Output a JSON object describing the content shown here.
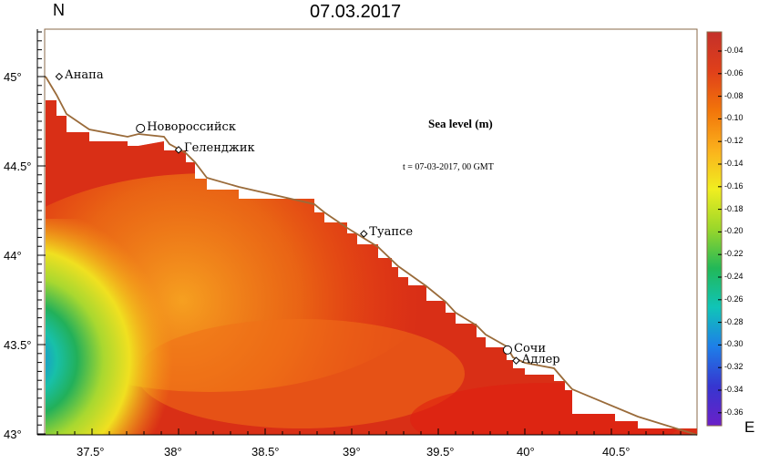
{
  "map": {
    "date": "07.03.2017",
    "north_label": "N",
    "east_label": "E",
    "panel_title": "Sea level (m)",
    "time_label": "t = 07-03-2017,  00 GMT",
    "lat_ticks": [
      "45°",
      "44.5°",
      "44°",
      "43.5°",
      "43°"
    ],
    "lon_ticks": [
      "37.5°",
      "38°",
      "38.5°",
      "39°",
      "39.5°",
      "40°",
      "40.5°"
    ],
    "colorbar_labels": [
      "-0.04",
      "-0.06",
      "-0.08",
      "-0.10",
      "-0.12",
      "-0.14",
      "-0.16",
      "-0.18",
      "-0.20",
      "-0.22",
      "-0.24",
      "-0.26",
      "-0.28",
      "-0.30",
      "-0.32",
      "-0.34",
      "-0.36"
    ],
    "colorbar_stops": [
      "#c4302a",
      "#e0401a",
      "#f2750a",
      "#fbb11c",
      "#f0ee20",
      "#9ad72a",
      "#22b858",
      "#10c4b8",
      "#1e7ee8",
      "#3636d0",
      "#6a20c8"
    ],
    "cities": [
      {
        "name": "Анапа",
        "lat": 45.0,
        "lon": 37.31
      },
      {
        "name": "Новороссийск",
        "lat": 44.71,
        "lon": 37.78
      },
      {
        "name": "Геленджик",
        "lat": 44.59,
        "lon": 38.0
      },
      {
        "name": "Туапсе",
        "lat": 44.12,
        "lon": 39.07
      },
      {
        "name": "Сочи",
        "lat": 43.47,
        "lon": 39.9
      },
      {
        "name": "Адлер",
        "lat": 43.41,
        "lon": 39.95
      }
    ]
  }
}
